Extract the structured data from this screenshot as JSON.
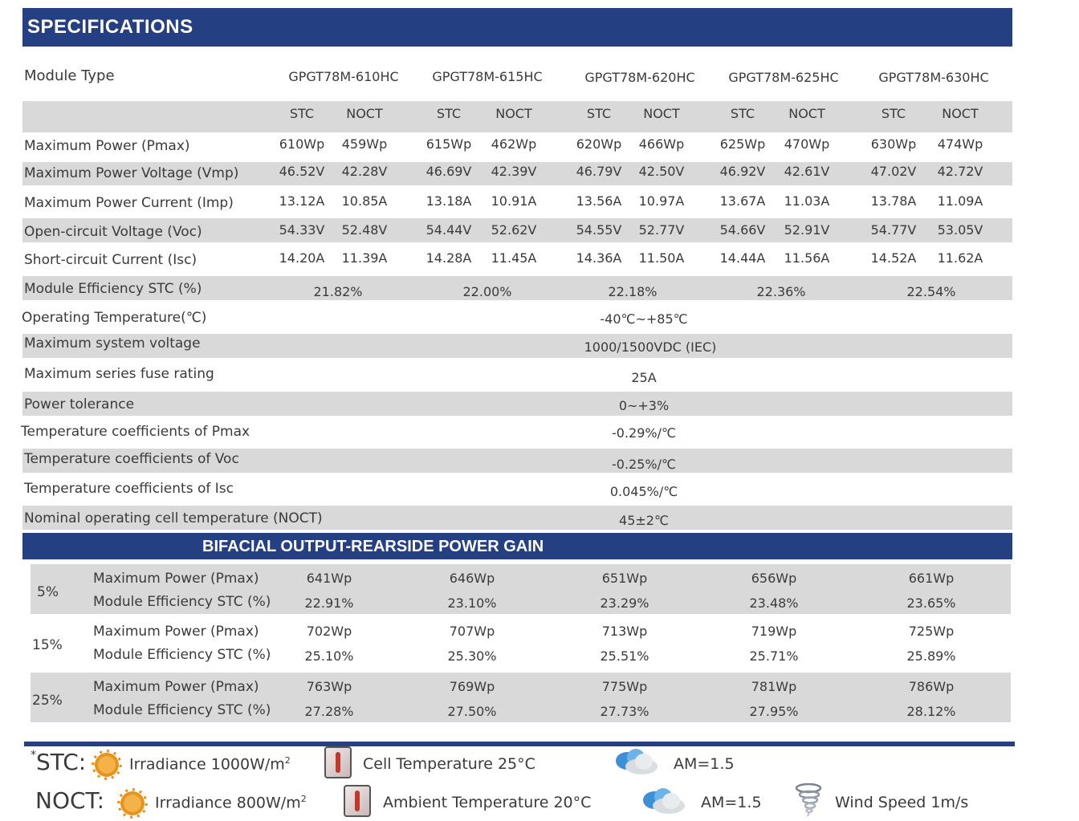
{
  "header": {
    "title": "SPECIFICATIONS"
  },
  "module_type_label": "Module Type",
  "models": [
    "GPGT78M-610HC",
    "GPGT78M-615HC",
    "GPGT78M-620HC",
    "GPGT78M-625HC",
    "GPGT78M-630HC"
  ],
  "stc_label": "STC",
  "noct_label": "NOCT",
  "rows": [
    {
      "label": "Maximum Power (Pmax)",
      "values": [
        "610Wp",
        "459Wp",
        "615Wp",
        "462Wp",
        "620Wp",
        "466Wp",
        "625Wp",
        "470Wp",
        "630Wp",
        "474Wp"
      ]
    },
    {
      "label": "Maximum Power Voltage (Vmp)",
      "values": [
        "46.52V",
        "42.28V",
        "46.69V",
        "42.39V",
        "46.79V",
        "42.50V",
        "46.92V",
        "42.61V",
        "47.02V",
        "42.72V"
      ]
    },
    {
      "label": "Maximum Power Current (Imp)",
      "values": [
        "13.12A",
        "10.85A",
        "13.18A",
        "10.91A",
        "13.56A",
        "10.97A",
        "13.67A",
        "11.03A",
        "13.78A",
        "11.09A"
      ]
    },
    {
      "label": "Open-circuit Voltage (Voc)",
      "values": [
        "54.33V",
        "52.48V",
        "54.44V",
        "52.62V",
        "54.55V",
        "52.77V",
        "54.66V",
        "52.91V",
        "54.77V",
        "53.05V"
      ]
    },
    {
      "label": "Short-circuit Current (Isc)",
      "values": [
        "14.20A",
        "11.39A",
        "14.28A",
        "11.45A",
        "14.36A",
        "11.50A",
        "14.44A",
        "11.56A",
        "14.52A",
        "11.62A"
      ]
    }
  ],
  "efficiency": {
    "label": "Module Efficiency STC (%)",
    "values": [
      "21.82%",
      "22.00%",
      "22.18%",
      "22.36%",
      "22.54%"
    ]
  },
  "common_rows": [
    {
      "label": "Operating Temperature(℃)",
      "value": "-40℃~+85℃"
    },
    {
      "label": "Maximum system voltage",
      "value": "1000/1500VDC (IEC)"
    },
    {
      "label": "Maximum series fuse rating",
      "value": "25A"
    },
    {
      "label": "Power tolerance",
      "value": "0~+3%"
    },
    {
      "label": "Temperature coefficients of Pmax",
      "value": "-0.29%/℃"
    },
    {
      "label": "Temperature coefficients of Voc",
      "value": "-0.25%/℃"
    },
    {
      "label": "Temperature coefficients of Isc",
      "value": "0.045%/℃"
    },
    {
      "label": "Nominal operating cell temperature  (NOCT)",
      "value": "45±2℃"
    }
  ],
  "bifacial": {
    "title": "BIFACIAL OUTPUT-REARSIDE POWER GAIN",
    "pmax_label": "Maximum Power (Pmax)",
    "eff_label": "Module Efficiency STC (%)",
    "groups": [
      {
        "gain": "5%",
        "pmax": [
          "641Wp",
          "646Wp",
          "651Wp",
          "656Wp",
          "661Wp"
        ],
        "eff": [
          "22.91%",
          "23.10%",
          "23.29%",
          "23.48%",
          "23.65%"
        ]
      },
      {
        "gain": "15%",
        "pmax": [
          "702Wp",
          "707Wp",
          "713Wp",
          "719Wp",
          "725Wp"
        ],
        "eff": [
          "25.10%",
          "25.30%",
          "25.51%",
          "25.71%",
          "25.89%"
        ]
      },
      {
        "gain": "25%",
        "pmax": [
          "763Wp",
          "769Wp",
          "775Wp",
          "781Wp",
          "786Wp"
        ],
        "eff": [
          "27.28%",
          "27.50%",
          "27.73%",
          "27.95%",
          "28.12%"
        ]
      }
    ]
  },
  "footer": {
    "stc": {
      "prefix": "*",
      "label": "STC:",
      "irradiance": "Irradiance 1000W/m",
      "cell_temp": "Cell Temperature 25°C",
      "am": "AM=1.5"
    },
    "noct": {
      "label": "NOCT:",
      "irradiance": "Irradiance 800W/m",
      "ambient_temp": "Ambient Temperature 20°C",
      "am": "AM=1.5",
      "wind": "Wind Speed 1m/s"
    },
    "sup": "2",
    "icons": [
      "sun-icon",
      "thermometer-icon",
      "cloud-icon",
      "tornado-icon"
    ]
  }
}
